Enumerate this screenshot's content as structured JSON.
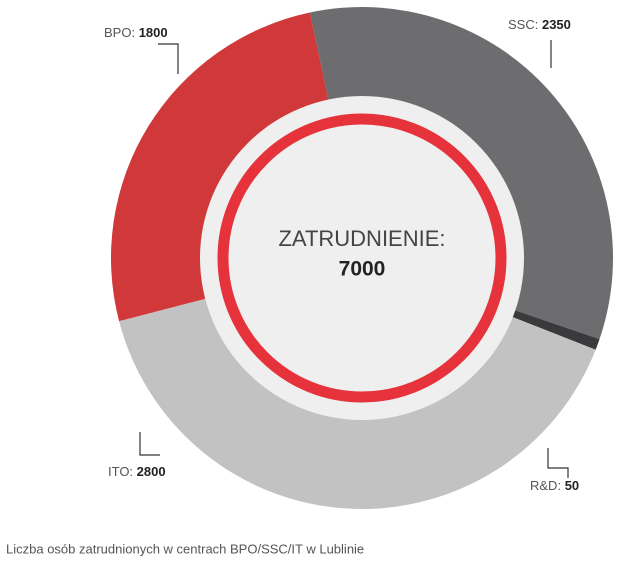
{
  "chart_data": {
    "type": "pie",
    "categories": [
      "SSC:",
      "R&D:",
      "ITO:",
      "BPO:"
    ],
    "values": [
      2350,
      50,
      2800,
      1800
    ],
    "colors": [
      "#6d6d6f",
      "#3a3a3c",
      "#c2c2c2",
      "#d0383a"
    ],
    "center_label": "ZATRUDNIENIE:",
    "total": 7000,
    "caption": "Liczba osób zatrudnionych w centrach BPO/SSC/IT w Lublinie"
  }
}
